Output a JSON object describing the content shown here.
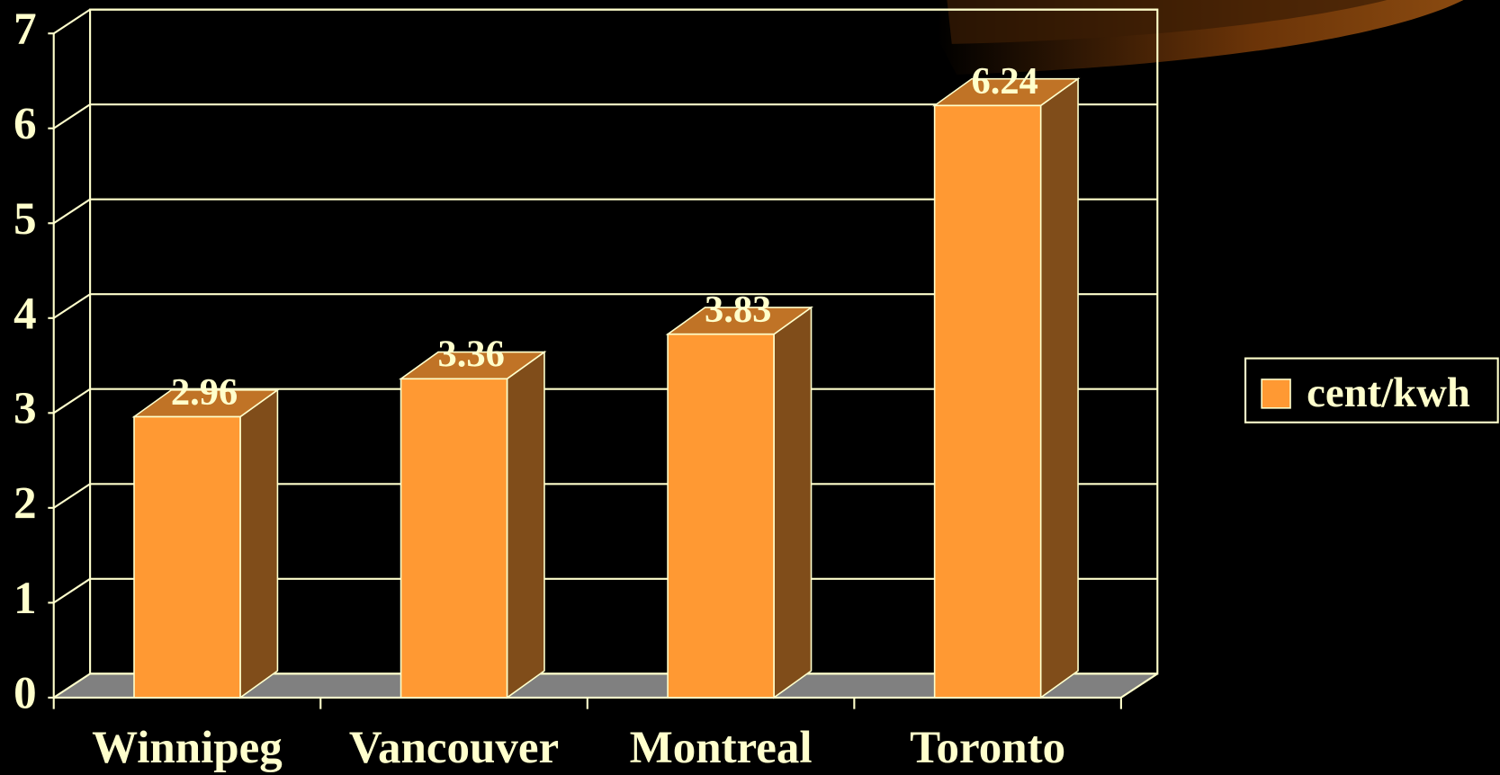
{
  "chart_data": {
    "type": "bar",
    "categories": [
      "Winnipeg",
      "Vancouver",
      "Montreal",
      "Toronto"
    ],
    "series": [
      {
        "name": "cent/kwh",
        "color": "#ff9933",
        "values": [
          2.96,
          3.36,
          3.83,
          6.24
        ]
      }
    ],
    "ylim": [
      0,
      7
    ],
    "yticks": [
      0,
      1,
      2,
      3,
      4,
      5,
      6,
      7
    ],
    "grid": true,
    "legend": "right"
  }
}
